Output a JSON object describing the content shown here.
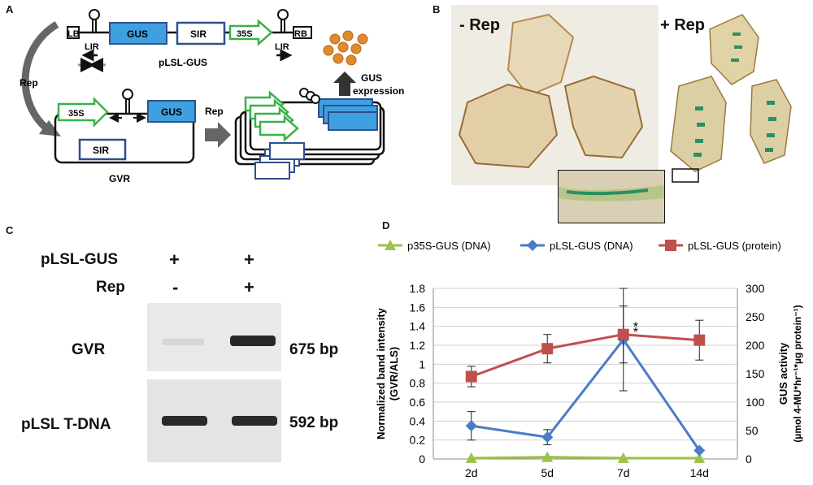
{
  "panels": {
    "a": "A",
    "b": "B",
    "c": "C",
    "d": "D"
  },
  "panel_a": {
    "lb": "LB",
    "rb": "RB",
    "lir_left": "LIR",
    "lir_right": "LIR",
    "gus_top": "GUS",
    "sir_top": "SIR",
    "p35s_top": "35S",
    "construct_name": "pLSL-GUS",
    "rep_curve": "Rep",
    "gvr_35s": "35S",
    "gvr_gus": "GUS",
    "gvr_sir": "SIR",
    "gvr_name": "GVR",
    "rep_arrow": "Rep",
    "gus_expression_1": "GUS",
    "gus_expression_2": "expression"
  },
  "panel_b": {
    "minus_rep": "- Rep",
    "plus_rep": "+ Rep"
  },
  "panel_c": {
    "row1_label": "pLSL-GUS",
    "row1_lane1": "+",
    "row1_lane2": "+",
    "row2_label": "Rep",
    "row2_lane1": "-",
    "row2_lane2": "+",
    "gel1_label": "GVR",
    "gel1_size": "675 bp",
    "gel2_label": "pLSL T-DNA",
    "gel2_size": "592 bp"
  },
  "colors": {
    "green": "#9bc24a",
    "blue": "#4a7cc7",
    "red": "#c0504d",
    "gus_box": "#3fa0df",
    "sir_border": "#2f4f8f",
    "arrow_green": "#3cb04a"
  },
  "chart_data": {
    "type": "line",
    "categories": [
      "2d",
      "5d",
      "7d",
      "14d"
    ],
    "ylabel_left": "Normalized band intensity (GVR/ALS)",
    "ylabel_right": "GUS activity (µmol 4-MU*hr⁻¹*µg protein⁻¹)",
    "ylim_left": [
      0,
      1.8
    ],
    "ylim_right": [
      0,
      300
    ],
    "yticks_left": [
      "0",
      "0.2",
      "0.4",
      "0.6",
      "0.8",
      "1",
      "1.2",
      "1.4",
      "1.6",
      "1.8"
    ],
    "yticks_right": [
      "0",
      "50",
      "100",
      "150",
      "200",
      "250",
      "300"
    ],
    "grid": true,
    "legend_position": "top",
    "series": [
      {
        "name": "p35S-GUS (DNA)",
        "axis": "left",
        "marker": "triangle",
        "color": "#9bc24a",
        "values": [
          0.01,
          0.02,
          0.01,
          0.01
        ],
        "errors": [
          0,
          0,
          0,
          0
        ]
      },
      {
        "name": "pLSL-GUS (DNA)",
        "axis": "left",
        "marker": "diamond",
        "color": "#4a7cc7",
        "values": [
          0.35,
          0.23,
          1.26,
          0.09
        ],
        "errors": [
          0.15,
          0.08,
          0.54,
          0
        ]
      },
      {
        "name": "pLSL-GUS (protein)",
        "axis": "right",
        "marker": "square",
        "color": "#c0504d",
        "values": [
          145,
          194,
          219,
          209
        ],
        "errors": [
          18,
          25,
          50,
          35
        ]
      }
    ],
    "annotations": [
      "*",
      "*"
    ]
  }
}
